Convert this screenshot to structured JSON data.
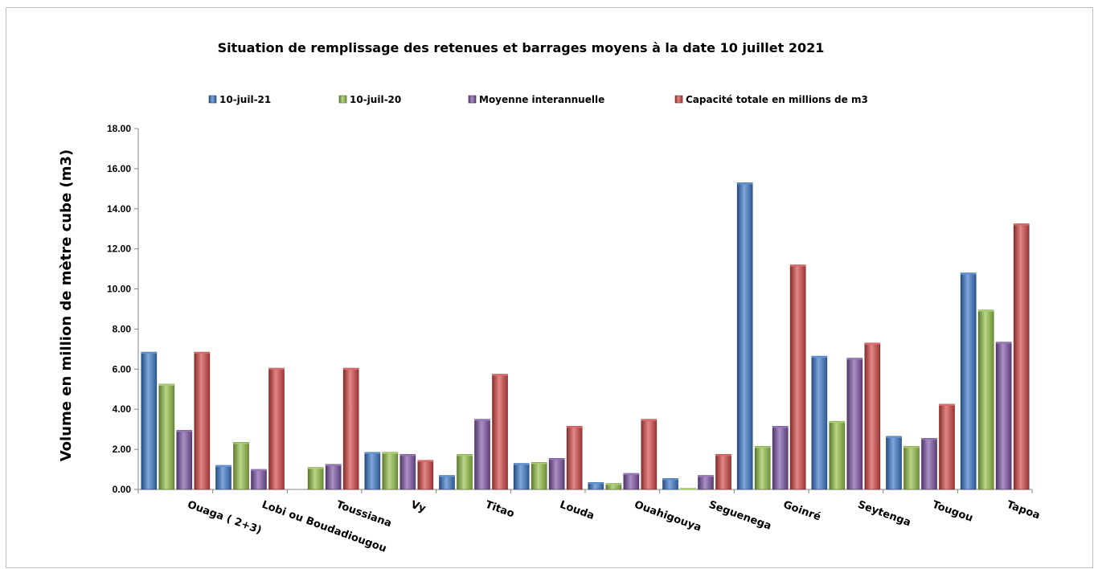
{
  "chart_data": {
    "type": "bar",
    "title": "Situation de remplissage des retenues et barrages moyens à la date 10 juillet 2021",
    "ylabel": "Volume en million de mètre cube (m3)",
    "xlabel": "",
    "ylim": [
      0,
      18
    ],
    "yticks": [
      "0.00",
      "2.00",
      "4.00",
      "6.00",
      "8.00",
      "10.00",
      "12.00",
      "14.00",
      "16.00",
      "18.00"
    ],
    "legend_position": "top",
    "grid": false,
    "categories": [
      "Ouaga ( 2+3)",
      "Lobi ou Boudadiougou",
      "Toussiana",
      "Vy",
      "Titao",
      "Louda",
      "Ouahigouya",
      "Seguenega",
      "Goinré",
      "Seytenga",
      "Tougou",
      "Tapoa"
    ],
    "series": [
      {
        "name": "10-juil-21",
        "color": "#3a78c8",
        "values": [
          6.85,
          1.2,
          0,
          1.85,
          0.7,
          1.3,
          0.35,
          0.55,
          15.3,
          6.65,
          2.65,
          10.8
        ]
      },
      {
        "name": "10-juil-20",
        "color": "#92c046",
        "values": [
          5.25,
          2.35,
          1.1,
          1.85,
          1.75,
          1.35,
          0.3,
          0.05,
          2.15,
          3.4,
          2.15,
          8.95
        ]
      },
      {
        "name": "Moyenne interannuelle",
        "color": "#7c54a4",
        "values": [
          2.95,
          1.0,
          1.25,
          1.75,
          3.5,
          1.55,
          0.8,
          0.7,
          3.15,
          6.55,
          2.55,
          7.35
        ]
      },
      {
        "name": "Capacité totale en millions de m3",
        "color": "#d24545",
        "values": [
          6.85,
          6.05,
          6.05,
          1.45,
          5.75,
          3.15,
          3.5,
          1.75,
          11.2,
          7.3,
          4.25,
          13.25
        ]
      }
    ]
  }
}
